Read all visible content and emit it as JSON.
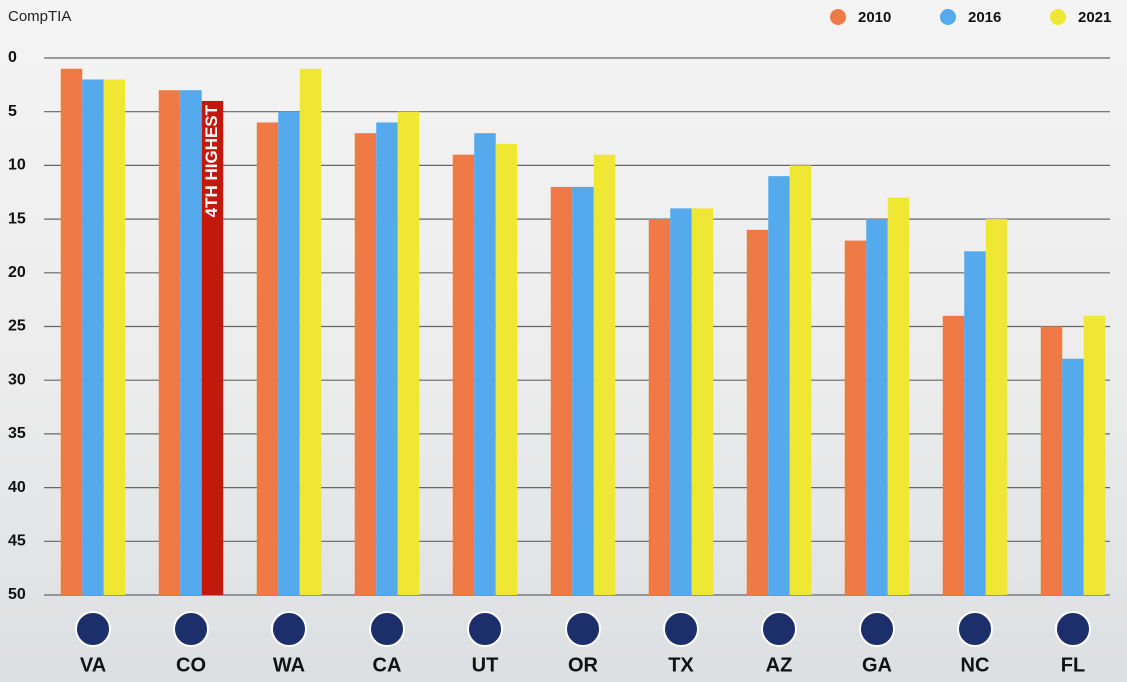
{
  "chart_data": {
    "type": "bar",
    "source": "CompTIA",
    "categories": [
      "VA",
      "CO",
      "WA",
      "CA",
      "UT",
      "OR",
      "TX",
      "AZ",
      "GA",
      "NC",
      "FL"
    ],
    "series": [
      {
        "name": "2010",
        "color": "#f07a45",
        "values": [
          1,
          3,
          6,
          7,
          9,
          12,
          15,
          16,
          17,
          24,
          25
        ]
      },
      {
        "name": "2016",
        "color": "#55aaee",
        "values": [
          2,
          3,
          5,
          6,
          7,
          12,
          14,
          11,
          15,
          18,
          28
        ]
      },
      {
        "name": "2021",
        "color": "#f0e634",
        "values": [
          2,
          4,
          1,
          5,
          8,
          9,
          14,
          10,
          13,
          15,
          24
        ]
      }
    ],
    "highlight": {
      "series": 2,
      "index": 1,
      "color": "#c3180c",
      "annotation": "4TH HIGHEST"
    },
    "ylim": [
      0,
      50
    ],
    "invert_y": true,
    "yticks": [
      0,
      5,
      10,
      15,
      20,
      25,
      30,
      35,
      40,
      45,
      50
    ],
    "grid": true,
    "legend": "top-right"
  }
}
